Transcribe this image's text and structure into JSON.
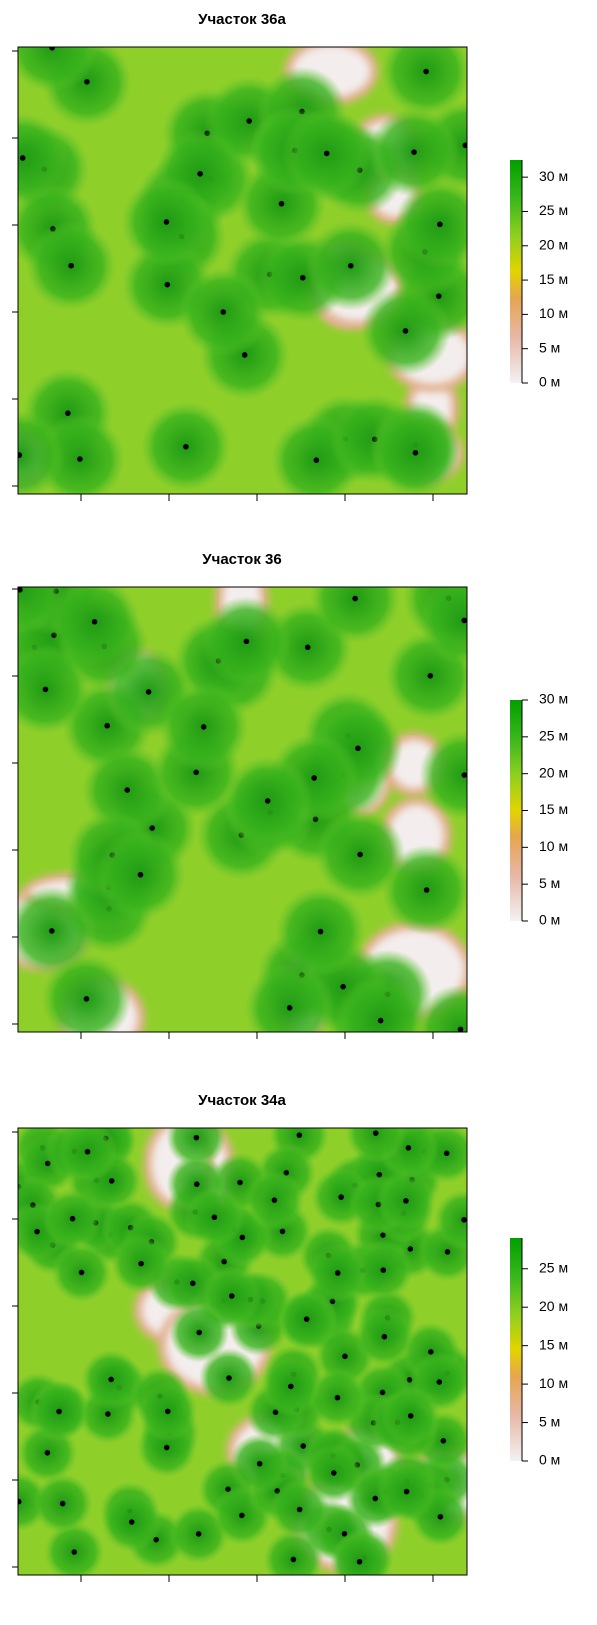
{
  "chart_data": [
    {
      "type": "raster",
      "title": "Участок 36а",
      "colorbar": {
        "ylim": [
          0,
          32.5
        ],
        "yticks": [
          {
            "value": 0,
            "label": "0 м"
          },
          {
            "value": 5,
            "label": "5 м"
          },
          {
            "value": 10,
            "label": "10 м"
          },
          {
            "value": 15,
            "label": "15 м"
          },
          {
            "value": 20,
            "label": "20 м"
          },
          {
            "value": 25,
            "label": "25 м"
          },
          {
            "value": 30,
            "label": "30 м"
          }
        ]
      }
    },
    {
      "type": "raster",
      "title": "Участок 36",
      "colorbar": {
        "ylim": [
          0,
          30
        ],
        "yticks": [
          {
            "value": 0,
            "label": "0 м"
          },
          {
            "value": 5,
            "label": "5 м"
          },
          {
            "value": 10,
            "label": "10 м"
          },
          {
            "value": 15,
            "label": "15 м"
          },
          {
            "value": 20,
            "label": "20 м"
          },
          {
            "value": 25,
            "label": "25 м"
          },
          {
            "value": 30,
            "label": "30 м"
          }
        ]
      }
    },
    {
      "type": "raster",
      "title": "Участок 34а",
      "colorbar": {
        "ylim": [
          0,
          29
        ],
        "yticks": [
          {
            "value": 0,
            "label": "0 м"
          },
          {
            "value": 5,
            "label": "5 м"
          },
          {
            "value": 10,
            "label": "10 м"
          },
          {
            "value": 15,
            "label": "15 м"
          },
          {
            "value": 20,
            "label": "20 м"
          },
          {
            "value": 25,
            "label": "25 м"
          }
        ]
      }
    }
  ]
}
